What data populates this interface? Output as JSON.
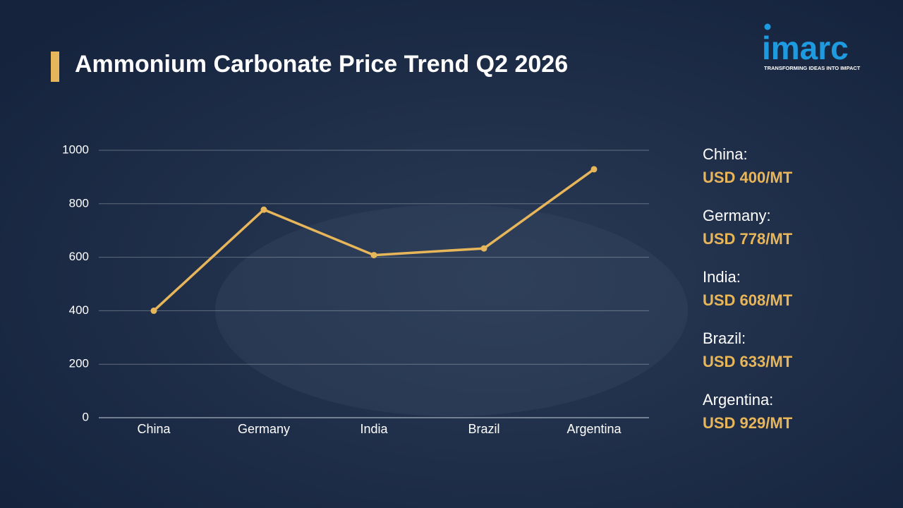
{
  "chart_data": {
    "type": "line",
    "title": "Ammonium Carbonate Price Trend Q2 2026",
    "categories": [
      "China",
      "Germany",
      "India",
      "Brazil",
      "Argentina"
    ],
    "values": [
      400,
      778,
      608,
      633,
      929
    ],
    "value_labels": [
      "USD 400/MT",
      "USD 778/MT",
      "USD 608/MT",
      "USD 633/MT",
      "USD 929/MT"
    ],
    "summary_labels": [
      "China:",
      "Germany:",
      "India:",
      "Brazil:",
      "Argentina:"
    ],
    "color": "#e8b65a",
    "ylim": [
      0,
      1000
    ],
    "yticks": [
      0,
      200,
      400,
      600,
      800,
      1000
    ],
    "grid": true
  },
  "logo": {
    "text": "imarc",
    "tagline": "TRANSFORMING IDEAS INTO IMPACT"
  }
}
